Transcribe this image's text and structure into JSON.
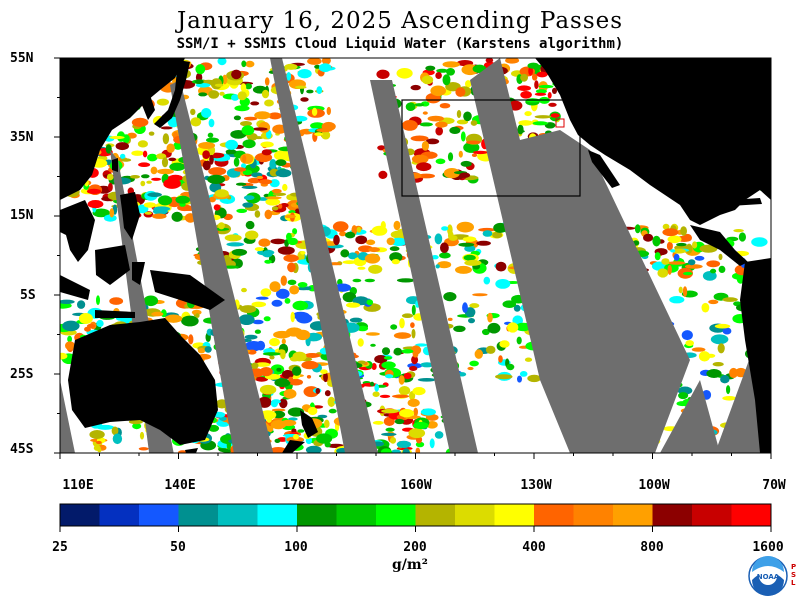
{
  "header": {
    "title": "January 16, 2025  Ascending Passes",
    "subtitle": "SSM/I + SSMIS Cloud Liquid Water (Karstens algorithm)"
  },
  "map": {
    "lat_labels": [
      "55N",
      "35N",
      "15N",
      "5S",
      "25S",
      "45S"
    ],
    "lon_labels": [
      "110E",
      "140E",
      "170E",
      "160W",
      "130W",
      "100W",
      "70W"
    ],
    "lat_range": [
      -45,
      55
    ],
    "lon_range": [
      110,
      290
    ],
    "land_color": "#000000",
    "no_data_color": "#6e6e6e",
    "clear_color": "#ffffff",
    "box_region": {
      "lat": [
        20,
        45
      ],
      "lon": [
        201,
        246
      ]
    }
  },
  "colorbar": {
    "labels": [
      "25",
      "50",
      "100",
      "200",
      "400",
      "800",
      "1600"
    ],
    "colors": [
      "#021a6a",
      "#0430c0",
      "#1458ff",
      "#009090",
      "#00c0c0",
      "#00ffff",
      "#009600",
      "#00c800",
      "#00ff00",
      "#b4b400",
      "#dcdc00",
      "#ffff00",
      "#ff6400",
      "#ff8200",
      "#ffa000",
      "#8c0000",
      "#c80000",
      "#ff0000"
    ],
    "unit": "g/m²"
  },
  "logo": {
    "name": "NOAA",
    "side_text": "PSL"
  }
}
